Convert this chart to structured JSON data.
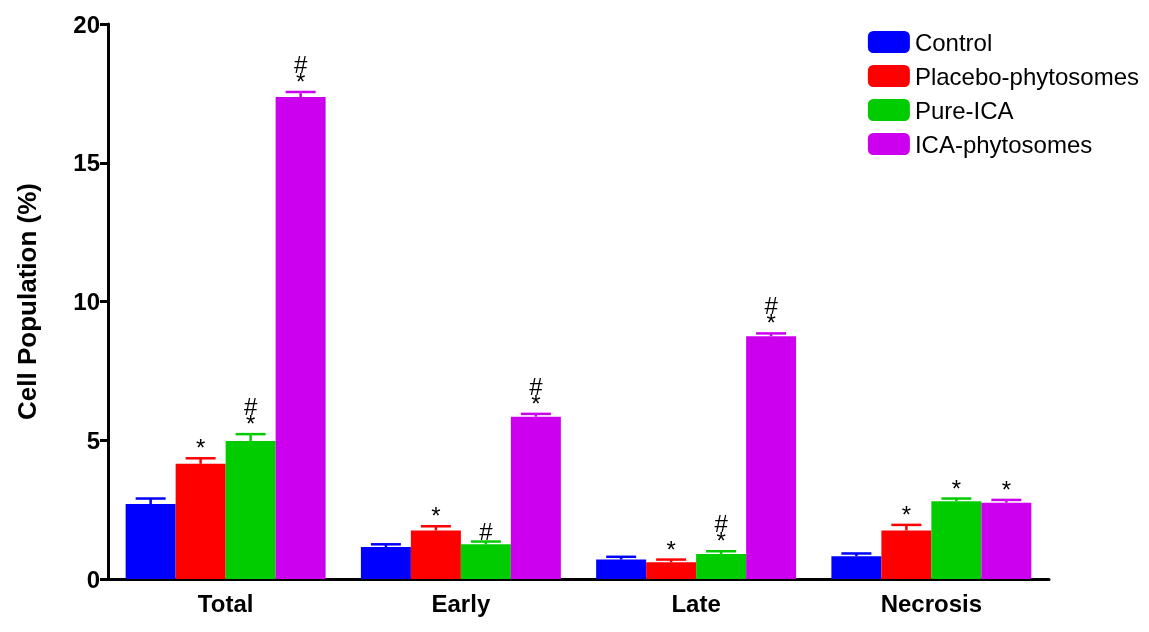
{
  "chart_data": {
    "type": "bar",
    "ylabel": "Cell Population (%)",
    "categories": [
      "Total",
      "Early",
      "Late",
      "Necrosis"
    ],
    "series": [
      {
        "name": "Control",
        "color": "#0000ff",
        "values": [
          2.7,
          1.15,
          0.7,
          0.82
        ],
        "errors": [
          0.2,
          0.1,
          0.1,
          0.1
        ]
      },
      {
        "name": "Placebo-phytosomes",
        "color": "#ff0000",
        "values": [
          4.15,
          1.75,
          0.6,
          1.75
        ],
        "errors": [
          0.2,
          0.15,
          0.1,
          0.2
        ],
        "value_labels": [
          "*",
          "*",
          "*",
          "*"
        ]
      },
      {
        "name": "Pure-ICA",
        "color": "#00cc00",
        "values": [
          4.97,
          1.25,
          0.9,
          2.8
        ],
        "errors": [
          0.25,
          0.1,
          0.1,
          0.1
        ],
        "value_labels": [
          "#\n*",
          "#",
          "#\n*",
          "*"
        ]
      },
      {
        "name": "ICA-phytosomes",
        "color": "#cc00ee",
        "values": [
          17.37,
          5.85,
          8.75,
          2.75
        ],
        "errors": [
          0.18,
          0.1,
          0.1,
          0.1
        ],
        "value_labels": [
          "#\n*",
          "#\n*",
          "#\n*",
          "*"
        ]
      }
    ],
    "ylim": [
      0,
      20
    ],
    "yticks": [
      0,
      5,
      10,
      15,
      20
    ],
    "grid": false,
    "legend": "top right"
  }
}
